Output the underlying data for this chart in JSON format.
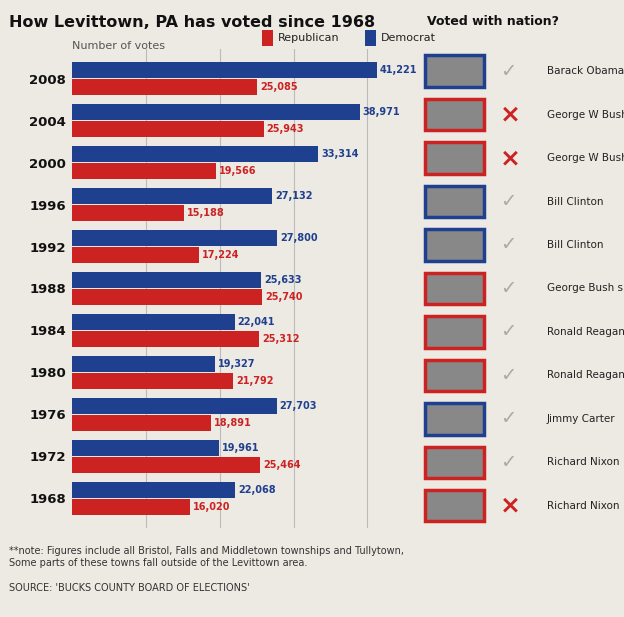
{
  "title": "How Levittown, PA has voted since 1968",
  "subtitle": "Number of votes",
  "years": [
    2008,
    2004,
    2000,
    1996,
    1992,
    1988,
    1984,
    1980,
    1976,
    1972,
    1968
  ],
  "democrat_votes": [
    41221,
    38971,
    33314,
    27132,
    27800,
    25633,
    22041,
    19327,
    27703,
    19961,
    22068
  ],
  "republican_votes": [
    25085,
    25943,
    19566,
    15188,
    17224,
    25740,
    25312,
    21792,
    18891,
    25464,
    16020
  ],
  "dem_color": "#1f3f8f",
  "rep_color": "#cc2222",
  "bar_height": 0.38,
  "xlim": [
    0,
    46000
  ],
  "background_color": "#ede9e3",
  "grid_color": "#bbbbbb",
  "footnote": "**note: Figures include all Bristol, Falls and Middletown townships and Tullytown,\nSome parts of these towns fall outside of the Levittown area.",
  "source": "SOURCE: 'BUCKS COUNTY BOARD OF ELECTIONS'",
  "right_panel_title": "Voted with nation?",
  "candidates": [
    "Barack Obama",
    "George W Bush",
    "George W Bush",
    "Bill Clinton",
    "Bill Clinton",
    "George Bush snr",
    "Ronald Reagan",
    "Ronald Reagan",
    "Jimmy Carter",
    "Richard Nixon",
    "Richard Nixon"
  ],
  "voted_with": [
    true,
    false,
    false,
    true,
    true,
    true,
    true,
    true,
    true,
    true,
    false
  ],
  "photo_border_colors": [
    "#1f3f8f",
    "#cc2222",
    "#cc2222",
    "#1f3f8f",
    "#1f3f8f",
    "#cc2222",
    "#cc2222",
    "#cc2222",
    "#1f3f8f",
    "#cc2222",
    "#cc2222"
  ],
  "check_color": "#aaaaaa",
  "x_color": "#cc2222"
}
